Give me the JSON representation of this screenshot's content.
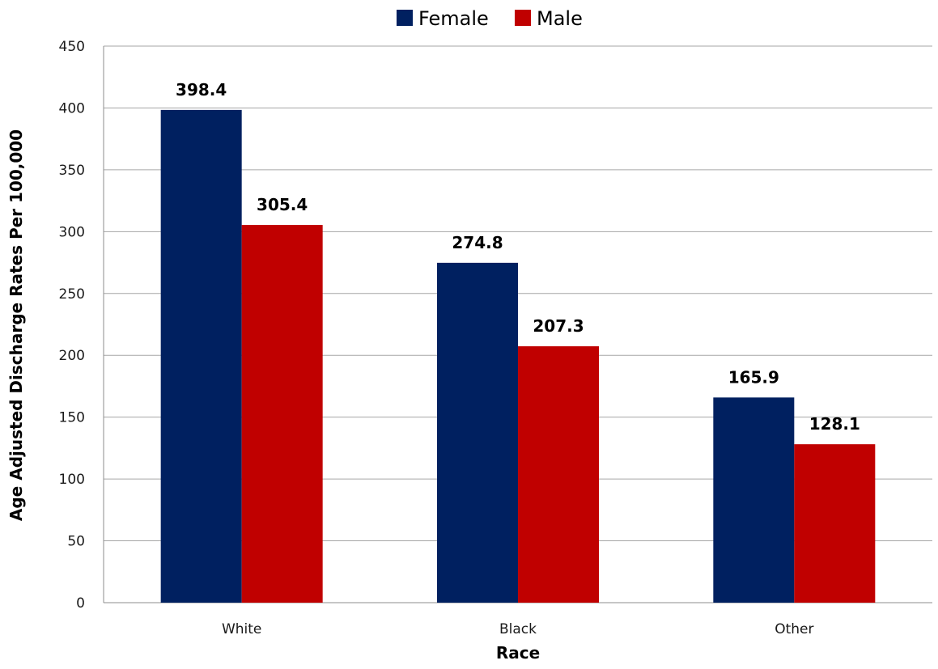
{
  "chart_data": {
    "type": "bar",
    "title": "",
    "xlabel": "Race",
    "ylabel": "Age Adjusted Discharge Rates Per 100,000",
    "categories": [
      "White",
      "Black",
      "Other"
    ],
    "series": [
      {
        "name": "Female",
        "values": [
          398.4,
          274.8,
          165.9
        ],
        "color": "#002060"
      },
      {
        "name": "Male",
        "values": [
          305.4,
          207.3,
          128.1
        ],
        "color": "#c00000"
      }
    ],
    "ylim": [
      0,
      450
    ],
    "yticks": [
      0,
      50,
      100,
      150,
      200,
      250,
      300,
      350,
      400,
      450
    ],
    "grid": true,
    "legend_position": "top-center",
    "data_labels": [
      "398.4",
      "305.4",
      "274.8",
      "207.3",
      "165.9",
      "128.1"
    ]
  }
}
